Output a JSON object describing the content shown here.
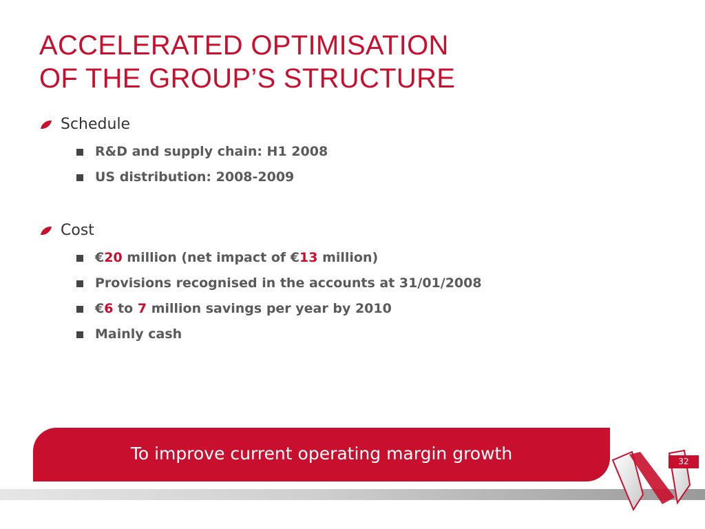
{
  "slide": {
    "title_line1": "ACCELERATED OPTIMISATION",
    "title_line2": "OF THE GROUP’S STRUCTURE",
    "page_number": "32"
  },
  "sections": [
    {
      "label": "Schedule",
      "items": [
        "R&D and supply chain: H1 2008",
        "US distribution: 2008-2009"
      ]
    },
    {
      "label": "Cost",
      "items": [
        {
          "parts": [
            {
              "text": "€"
            },
            {
              "text": "20",
              "highlight": true
            },
            {
              "text": " million (net impact of €"
            },
            {
              "text": "13",
              "highlight": true
            },
            {
              "text": " million)"
            }
          ]
        },
        "Provisions recognised in the accounts at 31/01/2008",
        {
          "parts": [
            {
              "text": "€"
            },
            {
              "text": "6",
              "highlight": true
            },
            {
              "text": " to "
            },
            {
              "text": "7",
              "highlight": true
            },
            {
              "text": " million savings per year by 2010"
            }
          ]
        },
        "Mainly cash"
      ]
    }
  ],
  "banner": {
    "text": "To improve current operating margin growth"
  },
  "colors": {
    "accent": "#c8102e",
    "bullet_text": "#5a5a5a",
    "bullet_square": "#444444"
  },
  "icons": {
    "section_bullet": "red-leaf-icon",
    "item_bullet": "square-bullet-icon",
    "logo": "brand-logo-icon"
  }
}
